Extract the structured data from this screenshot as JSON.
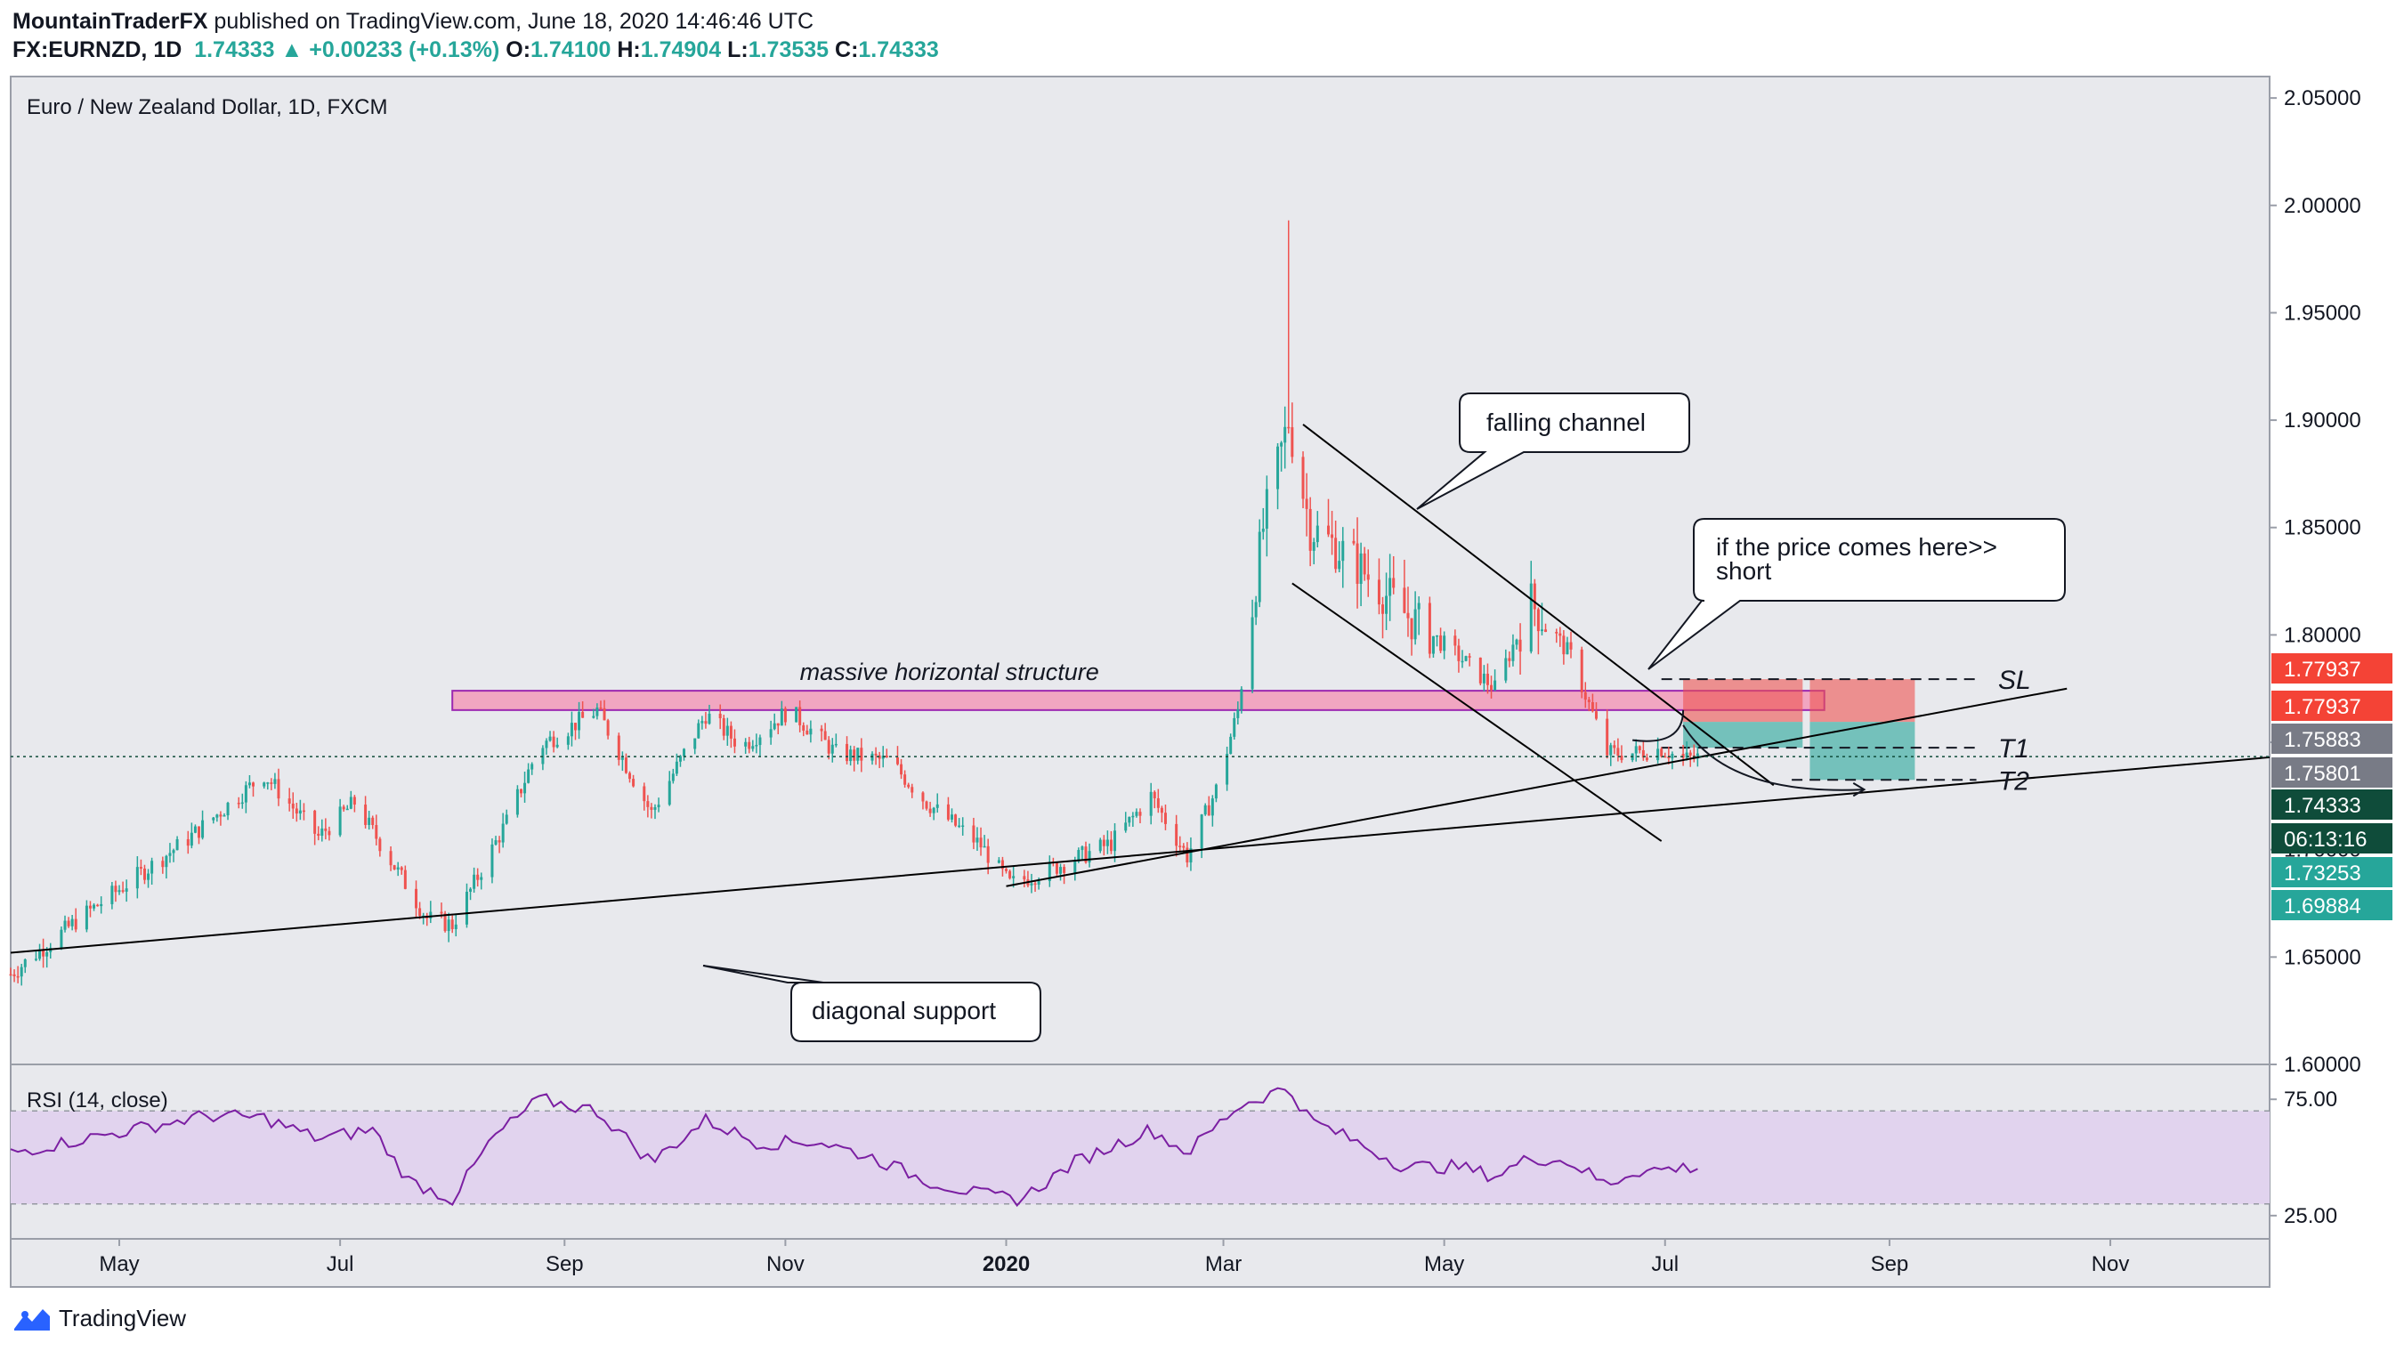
{
  "header": {
    "publisher": "MountainTraderFX",
    "published_text": "published on TradingView.com, June 18, 2020 14:46:46 UTC",
    "symbol": "FX:EURNZD, 1D",
    "last": "1.74333",
    "change": "+0.00233 (+0.13%)",
    "o_label": "O:",
    "o_value": "1.74100",
    "h_label": "H:",
    "h_value": "1.74904",
    "l_label": "L:",
    "l_value": "1.73535",
    "c_label": "C:",
    "c_value": "1.74333",
    "up_arrow_icon": "triangle-up-icon"
  },
  "footer": {
    "brand": "TradingView",
    "logo_icon": "tradingview-logo-icon"
  },
  "chart_data": [
    {
      "type": "candlestick",
      "title": "Euro / New Zealand Dollar, 1D, FXCM",
      "ylim": [
        1.6,
        2.06
      ],
      "y_ticks": [
        "1.60000",
        "1.65000",
        "1.70000",
        "1.75000",
        "1.80000",
        "1.85000",
        "1.90000",
        "1.95000",
        "2.00000",
        "2.05000"
      ],
      "x_ticks": [
        "May",
        "Jul",
        "Sep",
        "Nov",
        "2020",
        "Mar",
        "May",
        "Jul",
        "Sep",
        "Nov"
      ],
      "x_tick_dates": [
        "2019-05-01",
        "2019-07-01",
        "2019-09-01",
        "2019-11-01",
        "2020-01-01",
        "2020-03-01",
        "2020-05-01",
        "2020-07-01",
        "2020-09-01",
        "2020-11-01"
      ],
      "x_range": [
        "2019-04-01",
        "2020-12-15"
      ],
      "grid": false,
      "colors": {
        "up": "#26a69a",
        "down": "#ef5350",
        "background": "#e8e9ed",
        "line": "#000000",
        "zone_fill": "#f48fb1",
        "zone_border": "#9c27b0"
      },
      "close_keypoints": [
        [
          "2019-04-01",
          1.642
        ],
        [
          "2019-04-20",
          1.668
        ],
        [
          "2019-05-20",
          1.705
        ],
        [
          "2019-06-10",
          1.735
        ],
        [
          "2019-06-25",
          1.706
        ],
        [
          "2019-07-05",
          1.722
        ],
        [
          "2019-07-25",
          1.668
        ],
        [
          "2019-08-01",
          1.665
        ],
        [
          "2019-08-16",
          1.713
        ],
        [
          "2019-08-25",
          1.748
        ],
        [
          "2019-09-10",
          1.765
        ],
        [
          "2019-09-25",
          1.717
        ],
        [
          "2019-10-10",
          1.763
        ],
        [
          "2019-10-20",
          1.748
        ],
        [
          "2019-11-02",
          1.765
        ],
        [
          "2019-11-15",
          1.745
        ],
        [
          "2019-11-30",
          1.741
        ],
        [
          "2019-12-10",
          1.722
        ],
        [
          "2019-12-25",
          1.702
        ],
        [
          "2020-01-02",
          1.684
        ],
        [
          "2020-01-12",
          1.69
        ],
        [
          "2020-01-30",
          1.703
        ],
        [
          "2020-02-10",
          1.725
        ],
        [
          "2020-02-20",
          1.697
        ],
        [
          "2020-02-28",
          1.728
        ],
        [
          "2020-03-05",
          1.765
        ],
        [
          "2020-03-12",
          1.85
        ],
        [
          "2020-03-19",
          1.9
        ],
        [
          "2020-03-25",
          1.85
        ],
        [
          "2020-04-05",
          1.836
        ],
        [
          "2020-04-20",
          1.81
        ],
        [
          "2020-05-05",
          1.79
        ],
        [
          "2020-05-15",
          1.775
        ],
        [
          "2020-05-25",
          1.815
        ],
        [
          "2020-06-05",
          1.79
        ],
        [
          "2020-06-15",
          1.745
        ],
        [
          "2020-06-22",
          1.745
        ],
        [
          "2020-06-30",
          1.747
        ],
        [
          "2020-07-06",
          1.742
        ],
        [
          "2020-07-10",
          1.743
        ]
      ],
      "spike": {
        "date": "2020-03-19",
        "high": 1.993
      },
      "price_labels": [
        {
          "text": "1.77937",
          "color": "#f44336"
        },
        {
          "text": "1.77937",
          "color": "#f44336"
        },
        {
          "text": "1.75883",
          "color": "#787b86"
        },
        {
          "text": "1.75801",
          "color": "#787b86"
        },
        {
          "text": "1.74333",
          "color": "#0f4c3a"
        },
        {
          "text": "06:13:16",
          "color": "#0f4c3a"
        },
        {
          "text": "1.73253",
          "color": "#26a69a"
        },
        {
          "text": "1.69884",
          "color": "#26a69a"
        }
      ],
      "price_label_values": [
        1.77937,
        1.77937,
        1.75883,
        1.75801,
        1.74333,
        1.74333,
        1.73253,
        1.69884
      ],
      "annotations": {
        "zone_label": "massive horizontal structure",
        "zone": {
          "from": "2019-08-01",
          "to": "2020-08-14",
          "low": 1.765,
          "high": 1.774
        },
        "callout_channel": "falling channel",
        "callout_short_line1": "if the price comes here>>",
        "callout_short_line2": "short",
        "callout_support": "diagonal support",
        "sl": "SL",
        "t1": "T1",
        "t2": "T2"
      },
      "trend_lines": [
        {
          "name": "diagonal-support",
          "from": [
            "2019-04-01",
            1.652
          ],
          "to": [
            "2020-12-15",
            1.743
          ]
        },
        {
          "name": "rising-trendline",
          "from": [
            "2020-01-01",
            1.683
          ],
          "to": [
            "2020-10-20",
            1.775
          ]
        },
        {
          "name": "channel-upper",
          "from": [
            "2020-03-23",
            1.898
          ],
          "to": [
            "2020-07-31",
            1.73
          ]
        },
        {
          "name": "channel-lower",
          "from": [
            "2020-03-20",
            1.824
          ],
          "to": [
            "2020-06-30",
            1.704
          ]
        }
      ],
      "trade_setup": {
        "entry": 1.7595,
        "stop": 1.7794,
        "target1": 1.7475,
        "target2": 1.7325,
        "box1": {
          "from": "2020-07-06",
          "to": "2020-08-08"
        },
        "box2": {
          "from": "2020-08-10",
          "to": "2020-09-08"
        }
      },
      "current_price": 1.74333
    },
    {
      "type": "line",
      "title": "RSI (14, close)",
      "ylim": [
        15,
        90
      ],
      "y_ticks": [
        "25.00",
        "75.00"
      ],
      "band": [
        30,
        70
      ],
      "color": "#7b1fa2",
      "band_color": "#e1d3ee",
      "rsi_keypoints": [
        [
          "2019-04-01",
          52
        ],
        [
          "2019-05-05",
          62
        ],
        [
          "2019-05-25",
          68
        ],
        [
          "2019-06-10",
          67
        ],
        [
          "2019-06-25",
          58
        ],
        [
          "2019-07-10",
          62
        ],
        [
          "2019-07-20",
          40
        ],
        [
          "2019-08-01",
          32
        ],
        [
          "2019-08-12",
          58
        ],
        [
          "2019-08-25",
          75
        ],
        [
          "2019-09-10",
          70
        ],
        [
          "2019-09-25",
          48
        ],
        [
          "2019-10-10",
          66
        ],
        [
          "2019-10-25",
          56
        ],
        [
          "2019-11-10",
          57
        ],
        [
          "2019-11-25",
          50
        ],
        [
          "2019-12-10",
          40
        ],
        [
          "2019-12-25",
          34
        ],
        [
          "2020-01-05",
          32
        ],
        [
          "2020-01-20",
          48
        ],
        [
          "2020-02-10",
          62
        ],
        [
          "2020-02-20",
          52
        ],
        [
          "2020-03-05",
          72
        ],
        [
          "2020-03-15",
          78
        ],
        [
          "2020-03-19",
          80
        ],
        [
          "2020-03-25",
          66
        ],
        [
          "2020-04-05",
          58
        ],
        [
          "2020-04-20",
          46
        ],
        [
          "2020-05-05",
          46
        ],
        [
          "2020-05-15",
          42
        ],
        [
          "2020-05-25",
          50
        ],
        [
          "2020-06-05",
          48
        ],
        [
          "2020-06-15",
          38
        ],
        [
          "2020-06-22",
          44
        ],
        [
          "2020-07-10",
          46
        ]
      ]
    }
  ]
}
